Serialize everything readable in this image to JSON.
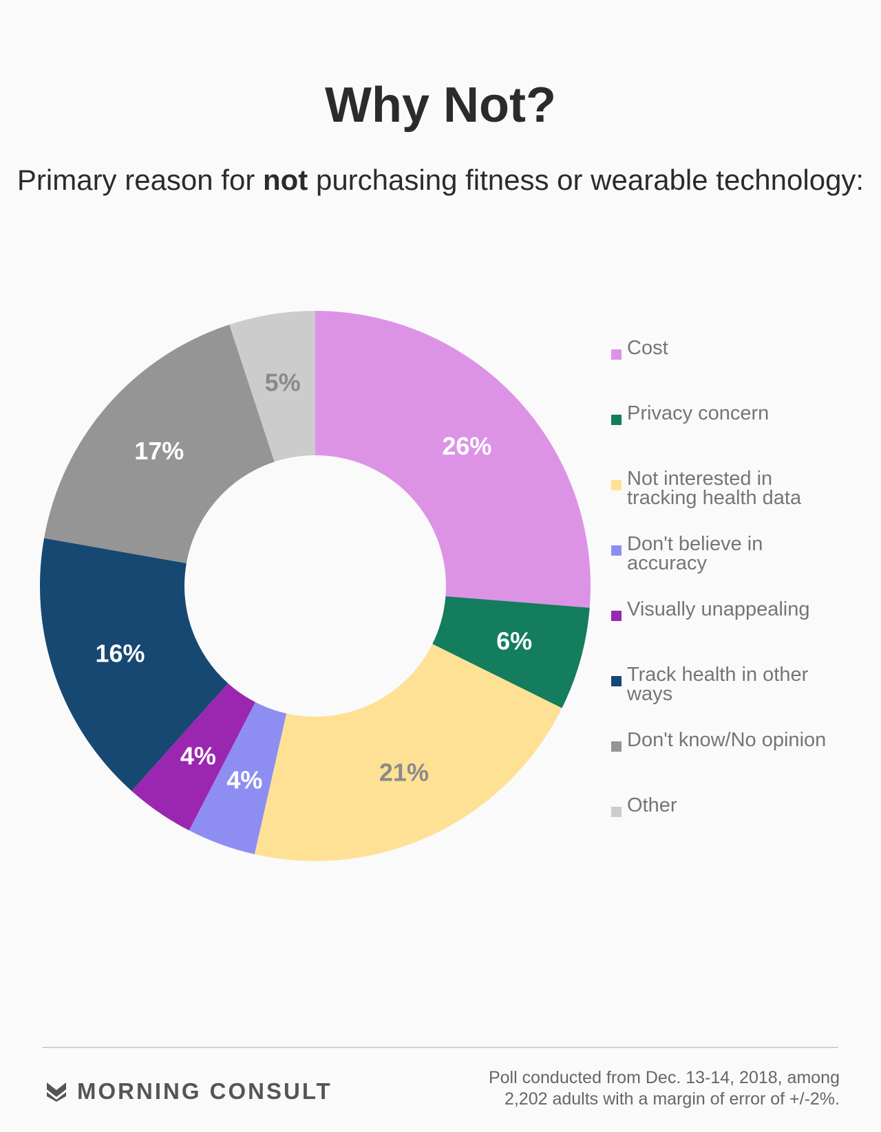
{
  "header": {
    "title": "Why Not?",
    "subtitle_pre": "Primary reason for ",
    "subtitle_bold": "not",
    "subtitle_post": " purchasing fitness or wearable technology:"
  },
  "chart_data": {
    "type": "pie",
    "donut": true,
    "title": "Why Not?",
    "subtitle": "Primary reason for not purchasing fitness or wearable technology:",
    "legend_position": "right",
    "slices": [
      {
        "label": "Cost",
        "value": 26,
        "display": "26%",
        "color": "#dc93e6",
        "text_color": "#ffffff"
      },
      {
        "label": "Privacy concern",
        "value": 6,
        "display": "6%",
        "color": "#137d5d",
        "text_color": "#ffffff"
      },
      {
        "label": "Not interested in tracking health data",
        "value": 21,
        "display": "21%",
        "color": "#fee194",
        "text_color": "#8a8a8a"
      },
      {
        "label": "Don't believe in accuracy",
        "value": 4,
        "display": "4%",
        "color": "#8e8ef2",
        "text_color": "#ffffff"
      },
      {
        "label": "Visually unappealing",
        "value": 4,
        "display": "4%",
        "color": "#9b27b0",
        "text_color": "#ffffff"
      },
      {
        "label": "Track health in other ways",
        "value": 16,
        "display": "16%",
        "color": "#164872",
        "text_color": "#ffffff"
      },
      {
        "label": "Don't know/No opinion",
        "value": 17,
        "display": "17%",
        "color": "#959595",
        "text_color": "#ffffff"
      },
      {
        "label": "Other",
        "value": 5,
        "display": "5%",
        "color": "#cccccc",
        "text_color": "#8a8a8a"
      }
    ]
  },
  "footer": {
    "brand": "MORNING CONSULT",
    "logo_icon": "chevron-logo-icon",
    "source_line1": "Poll conducted from Dec. 13-14, 2018, among",
    "source_line2": "2,202 adults with a margin of error of +/-2%."
  }
}
